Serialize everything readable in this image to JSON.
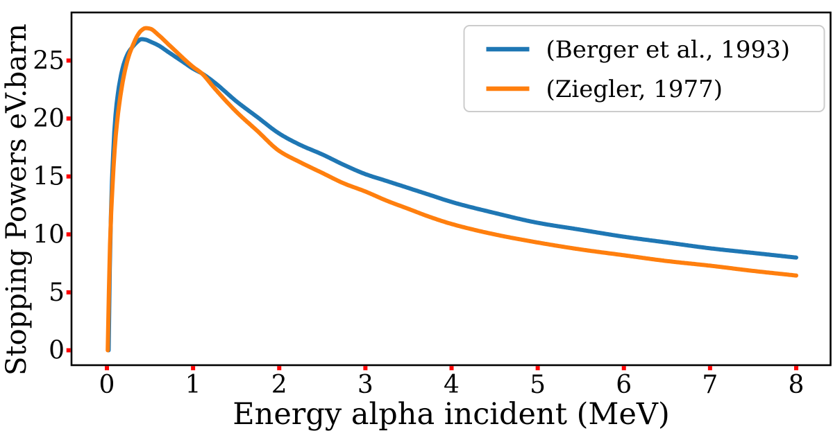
{
  "figure": {
    "background": "#ffffff",
    "spine_color": "#000000",
    "tick_mark_color": "#ff0000",
    "xlabel": "Energy alpha incident (MeV)",
    "ylabel": "Stopping Powers eV.barn"
  },
  "legend": {
    "position": "upper right",
    "border_color": "#cccccc",
    "items": [
      {
        "label": "(Berger et al., 1993)",
        "color": "#1f77b4"
      },
      {
        "label": "(Ziegler, 1977)",
        "color": "#ff7f0e"
      }
    ]
  },
  "chart_data": {
    "type": "line",
    "title": "",
    "xlabel": "Energy alpha incident (MeV)",
    "ylabel": "Stopping Powers eV.barn",
    "xlim": [
      -0.4,
      8.4
    ],
    "ylim": [
      -1.4,
      29.2
    ],
    "x_ticks": [
      0,
      1,
      2,
      3,
      4,
      5,
      6,
      7,
      8
    ],
    "y_ticks": [
      0,
      5,
      10,
      15,
      20,
      25
    ],
    "grid": false,
    "legend_position": "upper right",
    "series": [
      {
        "name": "(Berger et al., 1993)",
        "color": "#1f77b4",
        "x": [
          0.02,
          0.03,
          0.05,
          0.07,
          0.1,
          0.15,
          0.2,
          0.25,
          0.3,
          0.35,
          0.4,
          0.45,
          0.5,
          0.6,
          0.7,
          0.8,
          0.9,
          1.0,
          1.1,
          1.25,
          1.5,
          1.75,
          2.0,
          2.25,
          2.5,
          2.75,
          3.0,
          3.25,
          3.5,
          3.75,
          4.0,
          4.5,
          5.0,
          5.5,
          6.0,
          6.5,
          7.0,
          7.5,
          8.0
        ],
        "y": [
          0,
          5.5,
          12.5,
          16.5,
          20.3,
          23.2,
          24.8,
          25.7,
          26.2,
          26.6,
          26.85,
          26.8,
          26.65,
          26.3,
          25.8,
          25.3,
          24.8,
          24.3,
          23.9,
          23.1,
          21.5,
          20.1,
          18.7,
          17.7,
          16.9,
          16.0,
          15.2,
          14.6,
          14.0,
          13.4,
          12.8,
          11.85,
          11.0,
          10.4,
          9.8,
          9.3,
          8.8,
          8.4,
          8.0
        ]
      },
      {
        "name": "(Ziegler, 1977)",
        "color": "#ff7f0e",
        "x": [
          0.01,
          0.02,
          0.04,
          0.06,
          0.1,
          0.15,
          0.2,
          0.25,
          0.3,
          0.35,
          0.4,
          0.45,
          0.5,
          0.6,
          0.7,
          0.8,
          0.9,
          1.0,
          1.1,
          1.25,
          1.5,
          1.75,
          2.0,
          2.25,
          2.5,
          2.75,
          3.0,
          3.25,
          3.5,
          3.75,
          4.0,
          4.5,
          5.0,
          5.5,
          6.0,
          6.5,
          7.0,
          7.5,
          8.0
        ],
        "y": [
          0,
          4.0,
          10.0,
          13.5,
          18.3,
          21.6,
          23.8,
          25.3,
          26.3,
          27.1,
          27.6,
          27.8,
          27.75,
          27.2,
          26.5,
          25.8,
          25.1,
          24.45,
          23.9,
          22.6,
          20.6,
          18.9,
          17.2,
          16.2,
          15.3,
          14.4,
          13.7,
          12.9,
          12.2,
          11.5,
          10.9,
          10.0,
          9.3,
          8.7,
          8.2,
          7.7,
          7.3,
          6.85,
          6.45
        ]
      }
    ]
  }
}
